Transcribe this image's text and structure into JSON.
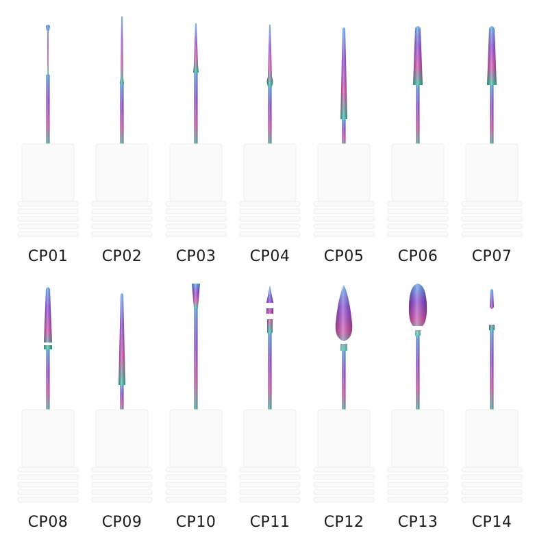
{
  "rows": [
    {
      "items": [
        {
          "code": "CP01",
          "shape": "ball"
        },
        {
          "code": "CP02",
          "shape": "needle-long"
        },
        {
          "code": "CP03",
          "shape": "needle-mid"
        },
        {
          "code": "CP04",
          "shape": "bulb-needle"
        },
        {
          "code": "CP05",
          "shape": "cone-long"
        },
        {
          "code": "CP06",
          "shape": "cone-round"
        },
        {
          "code": "CP07",
          "shape": "cone-round"
        }
      ]
    },
    {
      "items": [
        {
          "code": "CP08",
          "shape": "cone-ring"
        },
        {
          "code": "CP09",
          "shape": "cone-long"
        },
        {
          "code": "CP10",
          "shape": "flat-inverted"
        },
        {
          "code": "CP11",
          "shape": "arrow-ring"
        },
        {
          "code": "CP12",
          "shape": "flame"
        },
        {
          "code": "CP13",
          "shape": "bullet"
        },
        {
          "code": "CP14",
          "shape": "small-ball"
        }
      ]
    }
  ],
  "colors": {
    "background": "#ffffff",
    "mandrel": "#fafafa",
    "mandrel_shade": "#ececec",
    "label": "#1a1a1a",
    "chrome_top": "#4aa0e8",
    "chrome_mid": "#8a3ed6",
    "chrome_low": "#2ac0a0"
  }
}
